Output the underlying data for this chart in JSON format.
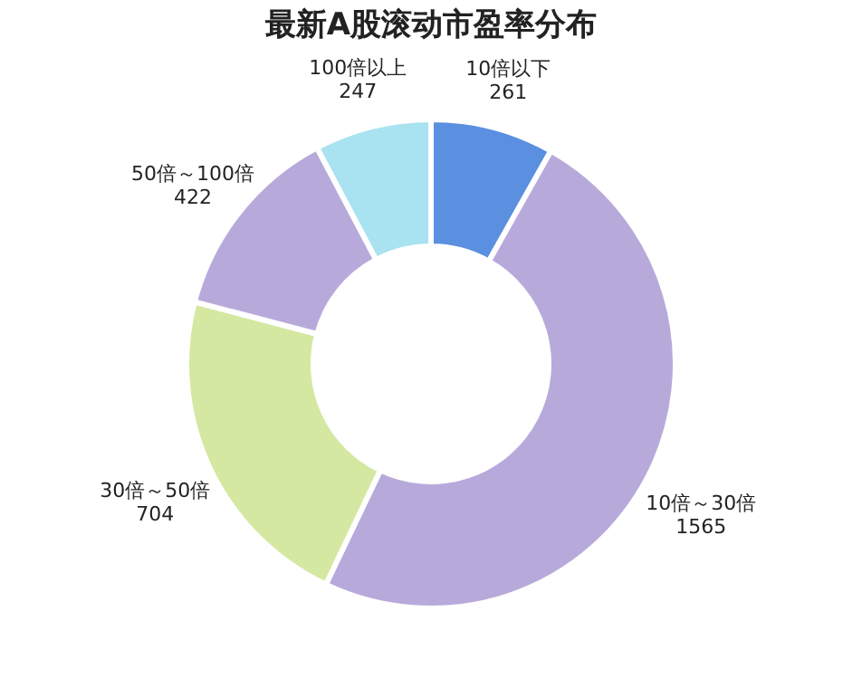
{
  "chart_data": {
    "type": "donut",
    "title": "最新A股滚动市盈率分布",
    "categories": [
      "10倍以下",
      "10倍～30倍",
      "30倍～50倍",
      "50倍～100倍",
      "100倍以上"
    ],
    "values": [
      261,
      1565,
      704,
      422,
      247
    ],
    "colors": [
      "#5b8fe0",
      "#b7aadb",
      "#d5e8a2",
      "#b7aadb",
      "#a9e2f0"
    ],
    "data_labels": true,
    "legend": false
  }
}
